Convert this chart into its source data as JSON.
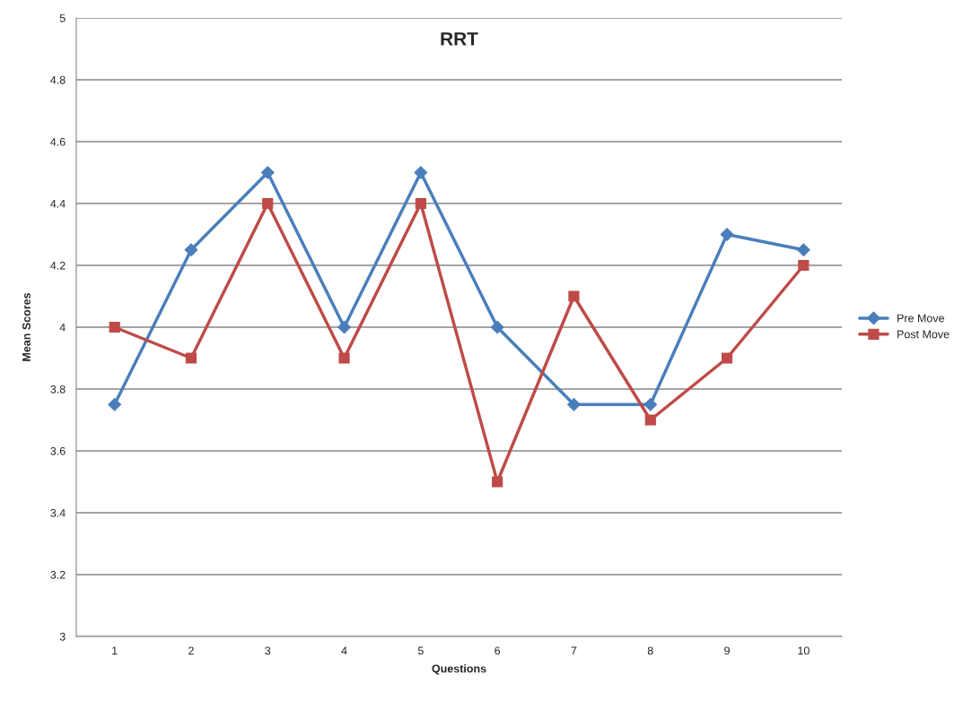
{
  "chart_data": {
    "type": "line",
    "title": "RRT",
    "xlabel": "Questions",
    "ylabel": "Mean Scores",
    "categories": [
      "1",
      "2",
      "3",
      "4",
      "5",
      "6",
      "7",
      "8",
      "9",
      "10"
    ],
    "series": [
      {
        "name": "Pre Move",
        "color": "#4a7ebb",
        "marker": "diamond",
        "values": [
          3.75,
          4.25,
          4.5,
          4,
          4.5,
          4,
          3.75,
          3.75,
          4.3,
          4.25
        ]
      },
      {
        "name": "Post Move",
        "color": "#be4b48",
        "marker": "square",
        "values": [
          4,
          3.9,
          4.4,
          3.9,
          4.4,
          3.5,
          4.1,
          3.7,
          3.9,
          4.2
        ]
      }
    ],
    "ylim": [
      3,
      5
    ],
    "yticks": [
      3,
      3.2,
      3.4,
      3.6,
      3.8,
      4,
      4.2,
      4.4,
      4.6,
      4.8,
      5
    ],
    "grid": "y",
    "legend": "right",
    "line_style": "solid"
  }
}
